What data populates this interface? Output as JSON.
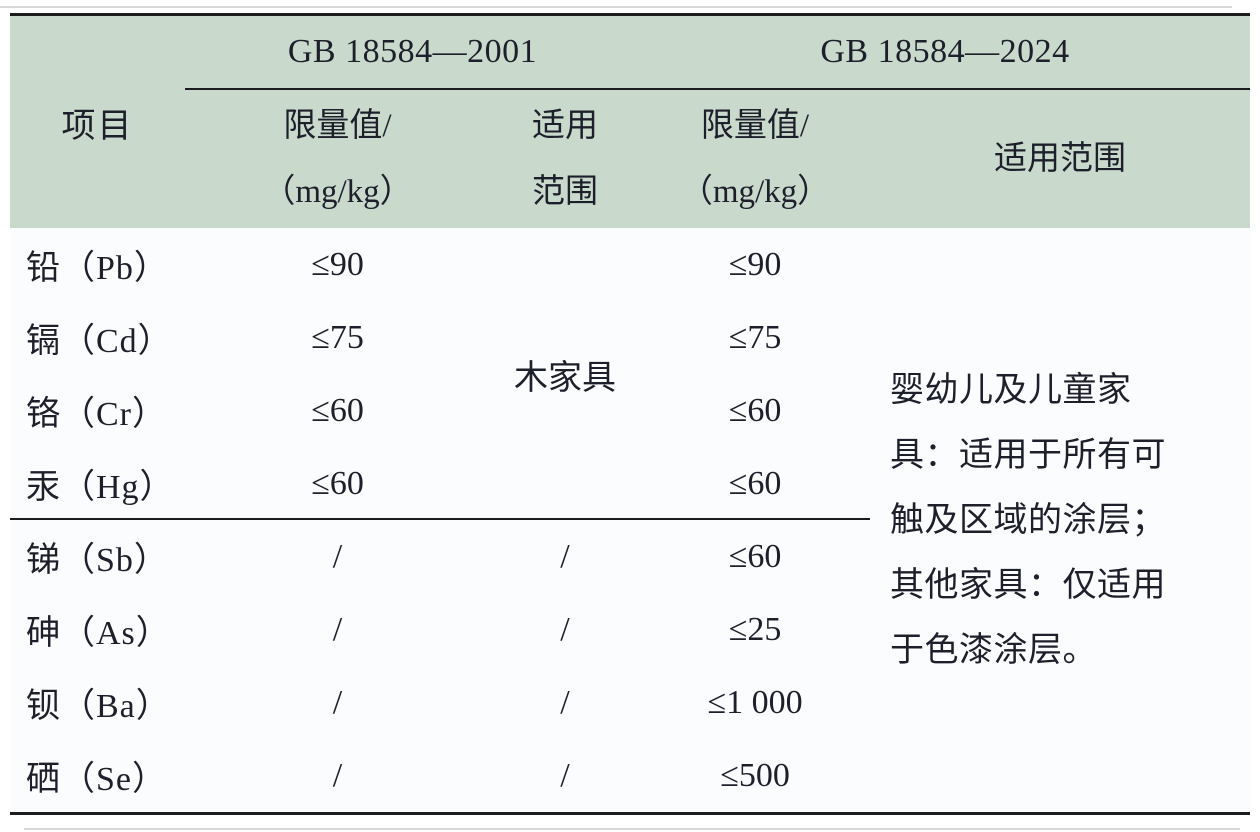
{
  "colors": {
    "header_bg": "#c9d9cb",
    "body_bg": "#fbfcfd",
    "rule": "#1c1c1e",
    "ink": "#1d1f2b",
    "page_bg": "#ffffff"
  },
  "table": {
    "header": {
      "item_label": "项目",
      "group_2001": "GB 18584—2001",
      "group_2024": "GB 18584—2024",
      "limit_2001_line1": "限量值/",
      "limit_2001_line2": "（mg/kg）",
      "scope_2001_line1": "适用",
      "scope_2001_line2": "范围",
      "limit_2024_line1": "限量值/",
      "limit_2024_line2": "（mg/kg）",
      "scope_2024_label": "适用范围"
    },
    "rows": [
      {
        "item": "铅（Pb）",
        "limit_2001": "≤90",
        "limit_2024": "≤90"
      },
      {
        "item": "镉（Cd）",
        "limit_2001": "≤75",
        "limit_2024": "≤75"
      },
      {
        "item": "铬（Cr）",
        "limit_2001": "≤60",
        "limit_2024": "≤60"
      },
      {
        "item": "汞（Hg）",
        "limit_2001": "≤60",
        "limit_2024": "≤60"
      },
      {
        "item": "锑（Sb）",
        "limit_2001": "/",
        "scope_2001": "/",
        "limit_2024": "≤60"
      },
      {
        "item": "砷（As）",
        "limit_2001": "/",
        "scope_2001": "/",
        "limit_2024": "≤25"
      },
      {
        "item": "钡（Ba）",
        "limit_2001": "/",
        "scope_2001": "/",
        "limit_2024": "≤1 000"
      },
      {
        "item": "硒（Se）",
        "limit_2001": "/",
        "scope_2001": "/",
        "limit_2024": "≤500"
      }
    ],
    "merged": {
      "scope_2001_rows_1_4": "木家具",
      "scope_2024_all_rows": "婴幼儿及儿童家\n具：适用于所有可\n触及区域的涂层；\n其他家具：仅适用\n于色漆涂层。"
    }
  }
}
